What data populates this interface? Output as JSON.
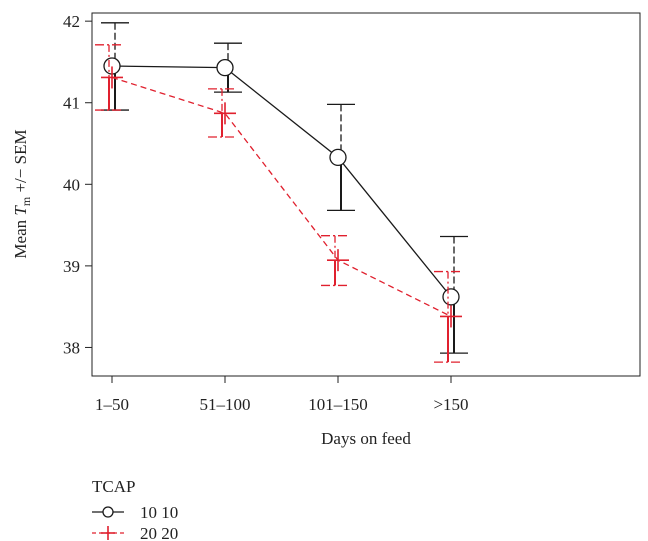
{
  "chart_data": {
    "type": "line",
    "title": "",
    "xlabel": "Days on feed",
    "ylabel": {
      "prefix": "Mean ",
      "symbol": "T",
      "subscript": "m",
      "suffix": " +/− SEM"
    },
    "categories": [
      "1–50",
      "51–100",
      "101–150",
      ">150"
    ],
    "ylim": [
      37.65,
      42.1
    ],
    "yticks": [
      38,
      39,
      40,
      41,
      42
    ],
    "grid": false,
    "legend_position": "bottom-left",
    "legend_title": "TCAP",
    "series": [
      {
        "name": "10 10",
        "color": "#1a1a1a",
        "line_style": "solid",
        "marker": "circle",
        "values": [
          41.45,
          41.43,
          40.33,
          38.62
        ],
        "upper": [
          41.98,
          41.73,
          40.98,
          39.36
        ],
        "lower": [
          40.91,
          41.13,
          39.68,
          37.93
        ]
      },
      {
        "name": "20 20",
        "color": "#e0202e",
        "line_style": "dashed",
        "marker": "plus",
        "values": [
          41.31,
          40.87,
          39.07,
          38.38
        ],
        "upper": [
          41.71,
          41.17,
          39.37,
          38.93
        ],
        "lower": [
          40.91,
          40.58,
          38.76,
          37.82
        ]
      }
    ]
  }
}
